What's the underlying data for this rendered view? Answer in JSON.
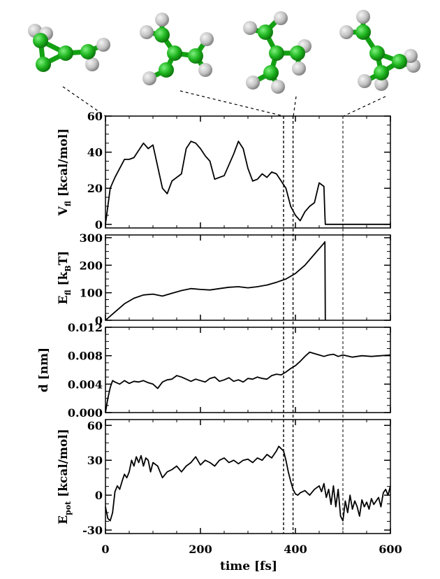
{
  "colors": {
    "atom_carbon": "#1fb51f",
    "atom_hydrogen": "#cfcfcf",
    "bond": "#13a013",
    "line": "#000000"
  },
  "molecules": [
    {
      "name": "cyclopropenyl-start"
    },
    {
      "name": "open-chain-1"
    },
    {
      "name": "open-chain-2"
    },
    {
      "name": "cyclopropenyl-end"
    }
  ],
  "xaxis": {
    "label": "time [fs]",
    "ticks": [
      "0",
      "200",
      "400",
      "600"
    ],
    "range": [
      0,
      600
    ]
  },
  "event_lines": [
    375,
    395,
    500
  ],
  "chart_data": [
    {
      "type": "line",
      "ylabel_main": "V",
      "ylabel_sub": "fl",
      "ylabel_rest": " [kcal/mol]",
      "ylim": [
        -2,
        60
      ],
      "yticks": [
        "0",
        "20",
        "40",
        "60"
      ],
      "x": [
        0,
        5,
        10,
        20,
        30,
        40,
        50,
        60,
        70,
        80,
        90,
        100,
        110,
        120,
        130,
        140,
        150,
        160,
        170,
        180,
        190,
        200,
        210,
        220,
        230,
        240,
        250,
        260,
        270,
        280,
        290,
        300,
        310,
        320,
        330,
        340,
        350,
        360,
        370,
        380,
        390,
        400,
        410,
        420,
        430,
        440,
        450,
        460,
        462,
        463,
        470,
        500,
        550,
        600
      ],
      "series": [
        {
          "values": [
            0,
            10,
            20,
            26,
            31,
            36,
            36,
            37,
            41,
            45,
            42,
            44,
            32,
            20,
            17,
            24,
            26,
            28,
            42,
            46,
            45,
            42,
            38,
            35,
            25,
            26,
            27,
            33,
            39,
            46,
            42,
            31,
            24,
            25,
            28,
            26,
            29,
            28,
            24,
            20,
            10,
            5,
            2,
            7,
            10,
            12,
            23,
            21,
            5,
            0,
            0,
            0,
            0,
            0
          ]
        }
      ]
    },
    {
      "type": "line",
      "ylabel_main": "E",
      "ylabel_sub": "fl",
      "ylabel_rest": " [k",
      "ylabel_sub2": "B",
      "ylabel_end": "T]",
      "ylim": [
        0,
        310
      ],
      "yticks": [
        "0",
        "100",
        "200",
        "300"
      ],
      "x": [
        0,
        20,
        40,
        60,
        80,
        100,
        120,
        140,
        160,
        180,
        200,
        220,
        240,
        260,
        280,
        300,
        320,
        340,
        360,
        380,
        400,
        420,
        440,
        460,
        462,
        463
      ],
      "series": [
        {
          "values": [
            0,
            30,
            60,
            80,
            92,
            95,
            88,
            98,
            108,
            115,
            112,
            110,
            115,
            120,
            122,
            118,
            122,
            128,
            138,
            150,
            170,
            200,
            240,
            280,
            285,
            0
          ]
        }
      ]
    },
    {
      "type": "line",
      "ylabel_main": "d [nm]",
      "ylim": [
        0,
        0.012
      ],
      "yticks": [
        "0.000",
        "0.004",
        "0.008",
        "0.012"
      ],
      "x": [
        0,
        5,
        10,
        15,
        20,
        30,
        40,
        50,
        60,
        70,
        80,
        90,
        100,
        110,
        120,
        130,
        140,
        150,
        160,
        170,
        180,
        190,
        200,
        210,
        220,
        230,
        240,
        250,
        260,
        270,
        280,
        290,
        300,
        310,
        320,
        330,
        340,
        350,
        360,
        370,
        380,
        390,
        400,
        410,
        420,
        430,
        440,
        450,
        460,
        470,
        480,
        490,
        500,
        520,
        540,
        560,
        580,
        600
      ],
      "series": [
        {
          "values": [
            0,
            0.002,
            0.0035,
            0.0045,
            0.0043,
            0.004,
            0.0045,
            0.0041,
            0.0044,
            0.0043,
            0.0045,
            0.0042,
            0.004,
            0.0034,
            0.0043,
            0.0046,
            0.0047,
            0.0052,
            0.005,
            0.0047,
            0.0044,
            0.0047,
            0.0045,
            0.0043,
            0.0048,
            0.005,
            0.0044,
            0.0046,
            0.0049,
            0.0044,
            0.0046,
            0.0043,
            0.0048,
            0.0047,
            0.005,
            0.0048,
            0.0047,
            0.0052,
            0.0054,
            0.0053,
            0.0057,
            0.0062,
            0.0066,
            0.0072,
            0.0079,
            0.0085,
            0.0083,
            0.0081,
            0.0079,
            0.0081,
            0.0082,
            0.0079,
            0.0081,
            0.0078,
            0.008,
            0.0079,
            0.008,
            0.0081
          ]
        }
      ]
    },
    {
      "type": "line",
      "ylabel_main": "E",
      "ylabel_sub": "pot",
      "ylabel_rest": " [kcal/mol]",
      "ylim": [
        -33,
        65
      ],
      "yticks": [
        "-30",
        "0",
        "30",
        "60"
      ],
      "x": [
        0,
        5,
        10,
        15,
        20,
        25,
        30,
        35,
        40,
        45,
        50,
        55,
        60,
        65,
        70,
        75,
        80,
        85,
        90,
        95,
        100,
        110,
        120,
        130,
        140,
        150,
        160,
        170,
        180,
        190,
        200,
        210,
        220,
        230,
        240,
        250,
        260,
        270,
        280,
        290,
        300,
        310,
        320,
        330,
        340,
        350,
        360,
        365,
        370,
        375,
        380,
        385,
        390,
        395,
        400,
        405,
        410,
        420,
        430,
        440,
        450,
        455,
        460,
        465,
        470,
        475,
        480,
        485,
        490,
        495,
        500,
        505,
        510,
        515,
        520,
        525,
        530,
        535,
        540,
        545,
        550,
        555,
        560,
        565,
        570,
        575,
        580,
        585,
        590,
        595,
        600
      ],
      "series": [
        {
          "values": [
            -10,
            -20,
            -22,
            -15,
            3,
            8,
            5,
            12,
            18,
            15,
            20,
            30,
            25,
            33,
            28,
            34,
            25,
            32,
            30,
            20,
            28,
            25,
            15,
            20,
            22,
            25,
            20,
            25,
            28,
            33,
            26,
            30,
            28,
            25,
            30,
            32,
            28,
            30,
            27,
            30,
            31,
            28,
            32,
            30,
            35,
            32,
            38,
            42,
            40,
            38,
            30,
            20,
            12,
            5,
            1,
            0,
            2,
            4,
            0,
            5,
            8,
            3,
            10,
            -2,
            5,
            -8,
            8,
            -10,
            5,
            -18,
            -22,
            -5,
            -15,
            0,
            -12,
            -5,
            -10,
            -18,
            -4,
            -10,
            -6,
            -12,
            -3,
            -8,
            -5,
            -2,
            -10,
            2,
            5,
            0,
            8
          ]
        }
      ]
    }
  ]
}
